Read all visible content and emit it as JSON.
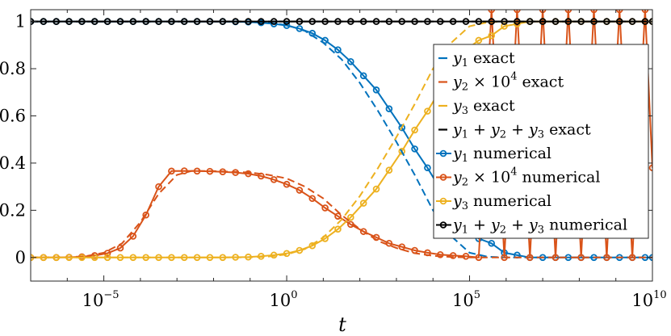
{
  "chart_data": {
    "type": "line",
    "xscale": "log",
    "xlim": [
      1e-07,
      10000000000.0
    ],
    "ylim": [
      -0.1,
      1.05
    ],
    "xlabel": "t",
    "ylabel": "",
    "title": "",
    "grid": false,
    "legend_position": "right",
    "x_ticks": [
      {
        "value": 1e-05,
        "base": "10",
        "exp": "−5"
      },
      {
        "value": 1,
        "base": "10",
        "exp": "0"
      },
      {
        "value": 100000.0,
        "base": "10",
        "exp": "5"
      },
      {
        "value": 10000000000.0,
        "base": "10",
        "exp": "10"
      }
    ],
    "y_ticks": [
      {
        "value": 0,
        "label": "0"
      },
      {
        "value": 0.2,
        "label": "0.2"
      },
      {
        "value": 0.4,
        "label": "0.4"
      },
      {
        "value": 0.6,
        "label": "0.6"
      },
      {
        "value": 0.8,
        "label": "0.8"
      },
      {
        "value": 1,
        "label": "1"
      }
    ],
    "marker_log10_t": [
      -7.0,
      -6.65,
      -6.3,
      -5.95,
      -5.6,
      -5.25,
      -4.9,
      -4.55,
      -4.2,
      -3.85,
      -3.5,
      -3.15,
      -2.8,
      -2.45,
      -2.1,
      -1.75,
      -1.4,
      -1.05,
      -0.7,
      -0.35,
      0.0,
      0.35,
      0.7,
      1.05,
      1.4,
      1.75,
      2.1,
      2.45,
      2.8,
      3.15,
      3.5,
      3.85,
      4.2,
      4.55,
      4.9,
      5.25,
      5.6,
      5.95,
      6.3,
      6.65,
      7.0,
      7.35,
      7.7,
      8.05,
      8.4,
      8.75,
      9.1,
      9.45,
      9.8,
      10.0
    ],
    "series": [
      {
        "name": "y1 exact",
        "color": "#0072BD",
        "style": "dashed",
        "points": [
          [
            -7,
            1
          ],
          [
            -2,
            1
          ],
          [
            -1,
            0.999
          ],
          [
            -0.5,
            0.995
          ],
          [
            0,
            0.985
          ],
          [
            0.5,
            0.96
          ],
          [
            1,
            0.91
          ],
          [
            1.5,
            0.84
          ],
          [
            2,
            0.74
          ],
          [
            2.5,
            0.62
          ],
          [
            3,
            0.49
          ],
          [
            3.5,
            0.35
          ],
          [
            4,
            0.2
          ],
          [
            4.5,
            0.09
          ],
          [
            5,
            0.02
          ],
          [
            5.5,
            0.003
          ],
          [
            6,
            0
          ],
          [
            10,
            0
          ]
        ]
      },
      {
        "name": "y2 × 10^4 exact",
        "color": "#D95319",
        "style": "dashed",
        "points": [
          [
            -7,
            0
          ],
          [
            -6,
            0.001
          ],
          [
            -5.5,
            0.005
          ],
          [
            -5,
            0.02
          ],
          [
            -4.5,
            0.06
          ],
          [
            -4,
            0.15
          ],
          [
            -3.5,
            0.27
          ],
          [
            -3,
            0.35
          ],
          [
            -2.6,
            0.367
          ],
          [
            -2,
            0.366
          ],
          [
            -1,
            0.36
          ],
          [
            -0.5,
            0.35
          ],
          [
            0,
            0.335
          ],
          [
            0.5,
            0.3
          ],
          [
            1,
            0.25
          ],
          [
            1.5,
            0.18
          ],
          [
            2,
            0.12
          ],
          [
            2.5,
            0.07
          ],
          [
            3,
            0.04
          ],
          [
            3.5,
            0.018
          ],
          [
            4,
            0.007
          ],
          [
            4.5,
            0.002
          ],
          [
            5,
            0
          ],
          [
            10,
            0
          ]
        ]
      },
      {
        "name": "y3 exact",
        "color": "#EDB120",
        "style": "dashed",
        "points": [
          [
            -7,
            0
          ],
          [
            -2,
            0
          ],
          [
            -1,
            0.001
          ],
          [
            -0.5,
            0.004
          ],
          [
            0,
            0.013
          ],
          [
            0.5,
            0.036
          ],
          [
            1,
            0.085
          ],
          [
            1.5,
            0.16
          ],
          [
            2,
            0.26
          ],
          [
            2.5,
            0.38
          ],
          [
            3,
            0.51
          ],
          [
            3.5,
            0.65
          ],
          [
            4,
            0.8
          ],
          [
            4.5,
            0.91
          ],
          [
            5,
            0.98
          ],
          [
            5.5,
            0.997
          ],
          [
            6,
            1
          ],
          [
            10,
            1
          ]
        ]
      },
      {
        "name": "y1 + y2 + y3 exact",
        "color": "#000000",
        "style": "dashed",
        "points": [
          [
            -7,
            1
          ],
          [
            10,
            1
          ]
        ]
      },
      {
        "name": "y1 numerical",
        "color": "#0072BD",
        "style": "solid-marker",
        "values": [
          1,
          1,
          1,
          1,
          1,
          1,
          1,
          1,
          1,
          1,
          1,
          1,
          1,
          1,
          1,
          1,
          0.999,
          0.998,
          0.995,
          0.99,
          0.983,
          0.97,
          0.95,
          0.92,
          0.88,
          0.83,
          0.77,
          0.71,
          0.63,
          0.55,
          0.46,
          0.38,
          0.29,
          0.2,
          0.12,
          0.08,
          0.06,
          0.02,
          0.01,
          0,
          0,
          0,
          0,
          0,
          0,
          0,
          0,
          0,
          0,
          0
        ]
      },
      {
        "name": "y2 × 10^4 numerical",
        "color": "#D95319",
        "style": "solid-marker",
        "values": [
          0,
          0,
          0,
          0.001,
          0.003,
          0.008,
          0.018,
          0.04,
          0.09,
          0.18,
          0.3,
          0.366,
          0.367,
          0.366,
          0.365,
          0.363,
          0.36,
          0.355,
          0.345,
          0.33,
          0.31,
          0.285,
          0.25,
          0.21,
          0.175,
          0.14,
          0.11,
          0.085,
          0.06,
          0.045,
          0.03,
          0.02,
          0.012,
          0.008,
          0.005,
          0,
          1.05,
          0,
          1.05,
          0,
          1.05,
          0,
          1.05,
          0,
          1.05,
          0,
          1.05,
          0,
          1.05,
          0.38
        ]
      },
      {
        "name": "y3 numerical",
        "color": "#EDB120",
        "style": "solid-marker",
        "values": [
          0,
          0,
          0,
          0,
          0,
          0,
          0,
          0,
          0,
          0,
          0,
          0,
          0,
          0,
          0,
          0,
          0.001,
          0.002,
          0.005,
          0.01,
          0.017,
          0.03,
          0.05,
          0.08,
          0.12,
          0.17,
          0.23,
          0.29,
          0.37,
          0.45,
          0.54,
          0.62,
          0.71,
          0.8,
          0.88,
          0.92,
          0.94,
          0.98,
          0.99,
          1,
          1,
          1,
          1,
          1,
          1,
          1,
          1,
          1,
          1,
          1
        ]
      },
      {
        "name": "y1 + y2 + y3 numerical",
        "color": "#000000",
        "style": "solid-marker",
        "values": [
          1,
          1,
          1,
          1,
          1,
          1,
          1,
          1,
          1,
          1,
          1,
          1,
          1,
          1,
          1,
          1,
          1,
          1,
          1,
          1,
          1,
          1,
          1,
          1,
          1,
          1,
          1,
          1,
          1,
          1,
          1,
          1,
          1,
          1,
          1,
          1,
          1,
          1,
          1,
          1,
          1,
          1,
          1,
          1,
          1,
          1,
          1,
          1,
          1,
          1
        ]
      }
    ],
    "legend": [
      {
        "series_index": 0,
        "parts": [
          {
            "t": "y",
            "i": true
          },
          {
            "t": "1",
            "sub": true
          },
          {
            "t": " exact"
          }
        ]
      },
      {
        "series_index": 1,
        "parts": [
          {
            "t": "y",
            "i": true
          },
          {
            "t": "2",
            "sub": true
          },
          {
            "t": " × 10"
          },
          {
            "t": "4",
            "sup": true
          },
          {
            "t": " exact"
          }
        ]
      },
      {
        "series_index": 2,
        "parts": [
          {
            "t": "y",
            "i": true
          },
          {
            "t": "3",
            "sub": true
          },
          {
            "t": " exact"
          }
        ]
      },
      {
        "series_index": 3,
        "parts": [
          {
            "t": "y",
            "i": true
          },
          {
            "t": "1",
            "sub": true
          },
          {
            "t": " + "
          },
          {
            "t": "y",
            "i": true
          },
          {
            "t": "2",
            "sub": true
          },
          {
            "t": " + "
          },
          {
            "t": "y",
            "i": true
          },
          {
            "t": "3",
            "sub": true
          },
          {
            "t": " exact"
          }
        ]
      },
      {
        "series_index": 4,
        "parts": [
          {
            "t": "y",
            "i": true
          },
          {
            "t": "1",
            "sub": true
          },
          {
            "t": " numerical"
          }
        ]
      },
      {
        "series_index": 5,
        "parts": [
          {
            "t": "y",
            "i": true
          },
          {
            "t": "2",
            "sub": true
          },
          {
            "t": " × 10"
          },
          {
            "t": "4",
            "sup": true
          },
          {
            "t": " numerical"
          }
        ]
      },
      {
        "series_index": 6,
        "parts": [
          {
            "t": "y",
            "i": true
          },
          {
            "t": "3",
            "sub": true
          },
          {
            "t": " numerical"
          }
        ]
      },
      {
        "series_index": 7,
        "parts": [
          {
            "t": "y",
            "i": true
          },
          {
            "t": "1",
            "sub": true
          },
          {
            "t": " + "
          },
          {
            "t": "y",
            "i": true
          },
          {
            "t": "2",
            "sub": true
          },
          {
            "t": " + "
          },
          {
            "t": "y",
            "i": true
          },
          {
            "t": "3",
            "sub": true
          },
          {
            "t": " numerical"
          }
        ]
      }
    ]
  }
}
